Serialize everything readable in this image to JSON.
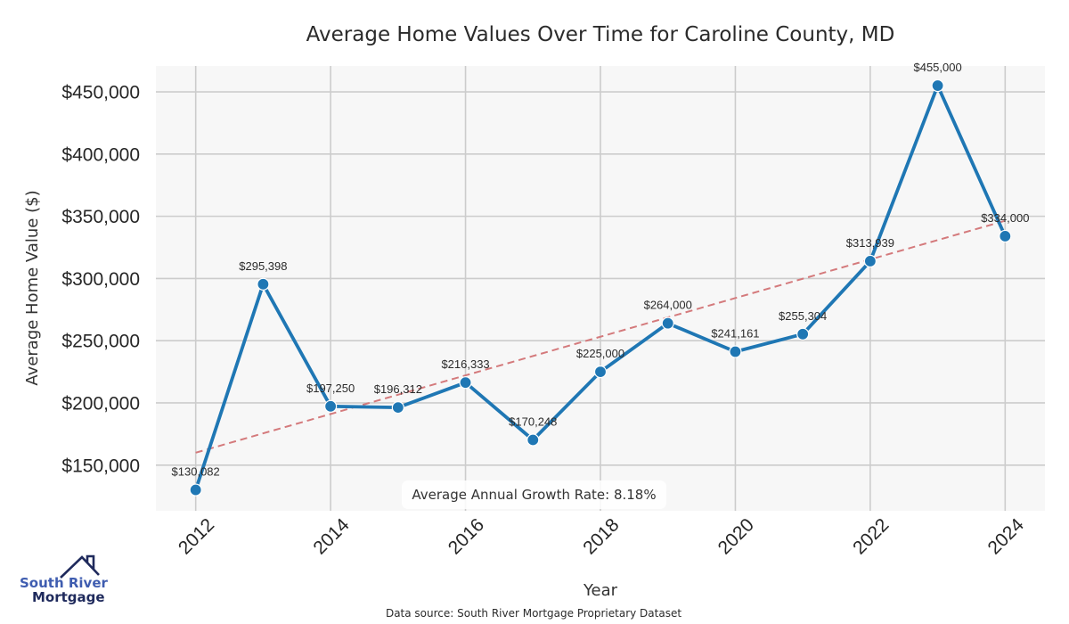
{
  "chart_data": {
    "type": "line",
    "title": "Average Home Values Over Time for Caroline County, MD",
    "xlabel": "Year",
    "ylabel": "Average Home Value ($)",
    "x": [
      2012,
      2013,
      2014,
      2015,
      2016,
      2017,
      2018,
      2019,
      2020,
      2021,
      2022,
      2023,
      2024
    ],
    "series": [
      {
        "name": "Average Home Value",
        "color": "#1f77b4",
        "values": [
          130082,
          295398,
          197250,
          196312,
          216333,
          170248,
          225000,
          264000,
          241161,
          255304,
          313939,
          455000,
          334000
        ],
        "labels": [
          "$130,082",
          "$295,398",
          "$197,250",
          "$196,312",
          "$216,333",
          "$170,248",
          "$225,000",
          "$264,000",
          "$241,161",
          "$255,304",
          "$313,939",
          "$455,000",
          "$334,000"
        ]
      },
      {
        "name": "Trend",
        "style": "dashed",
        "color": "#d47a7c",
        "x": [
          2012,
          2024
        ],
        "values": [
          160000,
          346400
        ]
      }
    ],
    "xticks": [
      2012,
      2014,
      2016,
      2018,
      2020,
      2022,
      2024
    ],
    "xtick_labels": [
      "2012",
      "2014",
      "2016",
      "2018",
      "2020",
      "2022",
      "2024"
    ],
    "yticks": [
      150000,
      200000,
      250000,
      300000,
      350000,
      400000,
      450000
    ],
    "ytick_labels": [
      "$150,000",
      "$200,000",
      "$250,000",
      "$300,000",
      "$350,000",
      "$400,000",
      "$450,000"
    ],
    "xlim": [
      2011.41,
      2024.59
    ],
    "ylim": [
      113300,
      470800
    ],
    "grid": true,
    "annotation": "Average Annual Growth Rate: 8.18%",
    "annotation_position": "bottom-center"
  },
  "footer": {
    "source": "Data source: South River Mortgage Proprietary Dataset"
  },
  "logo": {
    "line1": "South River",
    "line2": "Mortgage"
  }
}
